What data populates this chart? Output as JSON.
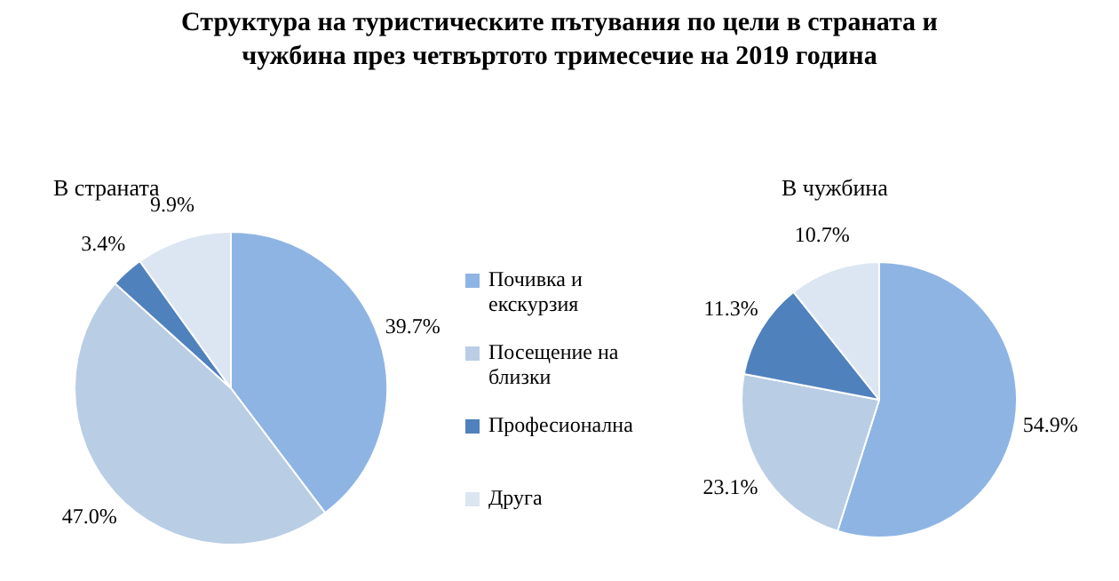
{
  "chart_data": [
    {
      "type": "pie",
      "title": "Структура на туристическите пътувания по цели в страната и чужбина през четвъртото тримесечие на 2019 година",
      "subtitle": "В страната",
      "categories": [
        "Почивка и екскурзия",
        "Посещение на близки",
        "Професионална",
        "Друга"
      ],
      "values": [
        39.7,
        47.0,
        3.4,
        9.9
      ],
      "value_labels": [
        "39.7%",
        "47.0%",
        "3.4%",
        "9.9%"
      ],
      "colors": [
        "#8eb4e3",
        "#b9cde5",
        "#4f81bd",
        "#dce6f2"
      ],
      "legend": "right"
    },
    {
      "type": "pie",
      "subtitle": "В чужбина",
      "categories": [
        null,
        null,
        null,
        null
      ],
      "values": [
        54.9,
        23.1,
        11.3,
        10.7
      ],
      "value_labels": [
        "54.9%",
        "23.1%",
        "11.3%",
        "10.7%"
      ],
      "colors": [
        "#8eb4e3",
        "#b9cde5",
        "#4f81bd",
        "#dce6f2"
      ]
    }
  ]
}
